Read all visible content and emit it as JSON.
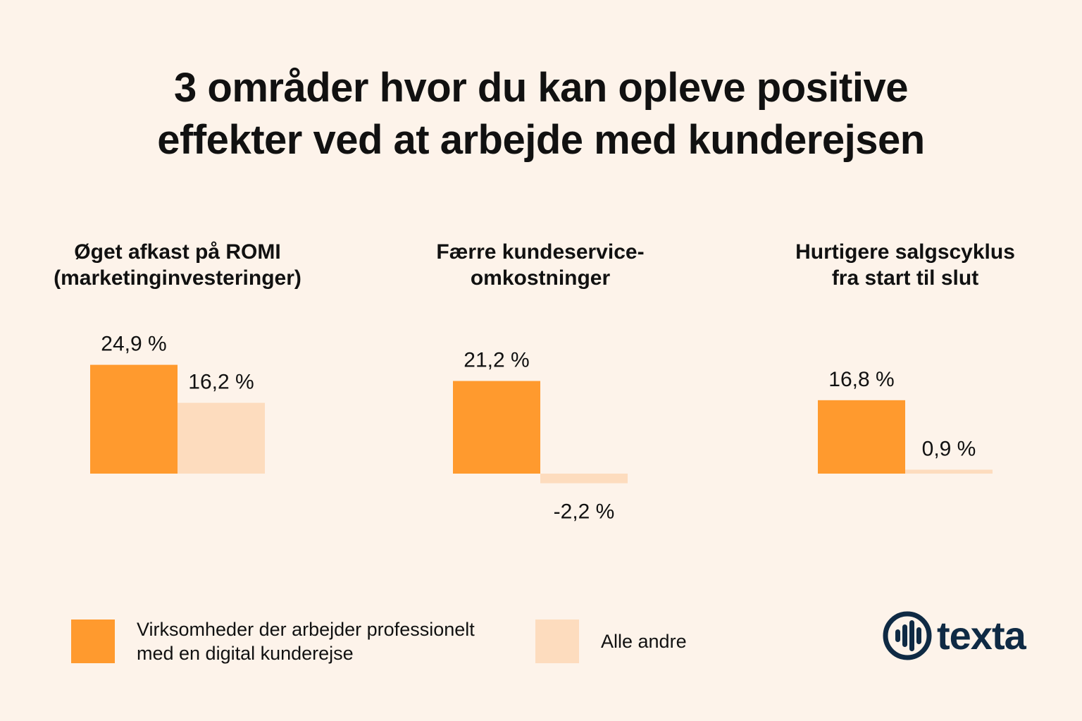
{
  "title_lines": [
    "3 områder hvor du kan opleve positive",
    "effekter ved at arbejde med kunderejsen"
  ],
  "colors": {
    "background": "#fdf3ea",
    "series_professional": "#ff9a2e",
    "series_others": "#fddcbe",
    "logo": "#0f2a44"
  },
  "chart_data": [
    {
      "type": "bar",
      "title_lines": [
        "Øget afkast på ROMI",
        "(marketinginvesteringer)"
      ],
      "series": [
        {
          "name": "Virksomheder der arbejder professionelt med en digital kunderejse",
          "values": [
            24.9
          ],
          "label": "24,9 %"
        },
        {
          "name": "Alle andre",
          "values": [
            16.2
          ],
          "label": "16,2 %"
        }
      ]
    },
    {
      "type": "bar",
      "title_lines": [
        "Færre kundeservice-",
        "omkostninger"
      ],
      "series": [
        {
          "name": "Virksomheder der arbejder professionelt med en digital kunderejse",
          "values": [
            21.2
          ],
          "label": "21,2 %"
        },
        {
          "name": "Alle andre",
          "values": [
            -2.2
          ],
          "label": "-2,2 %"
        }
      ]
    },
    {
      "type": "bar",
      "title_lines": [
        "Hurtigere salgscyklus",
        "fra start til slut"
      ],
      "series": [
        {
          "name": "Virksomheder der arbejder professionelt med en digital kunderejse",
          "values": [
            16.8
          ],
          "label": "16,8 %"
        },
        {
          "name": "Alle andre",
          "values": [
            0.9
          ],
          "label": "0,9 %"
        }
      ]
    }
  ],
  "legend": {
    "professional_lines": [
      "Virksomheder der arbejder professionelt",
      "med en digital kunderejse"
    ],
    "others": "Alle andre"
  },
  "logo": {
    "text": "texta",
    "icon": "texta-logo-icon"
  }
}
